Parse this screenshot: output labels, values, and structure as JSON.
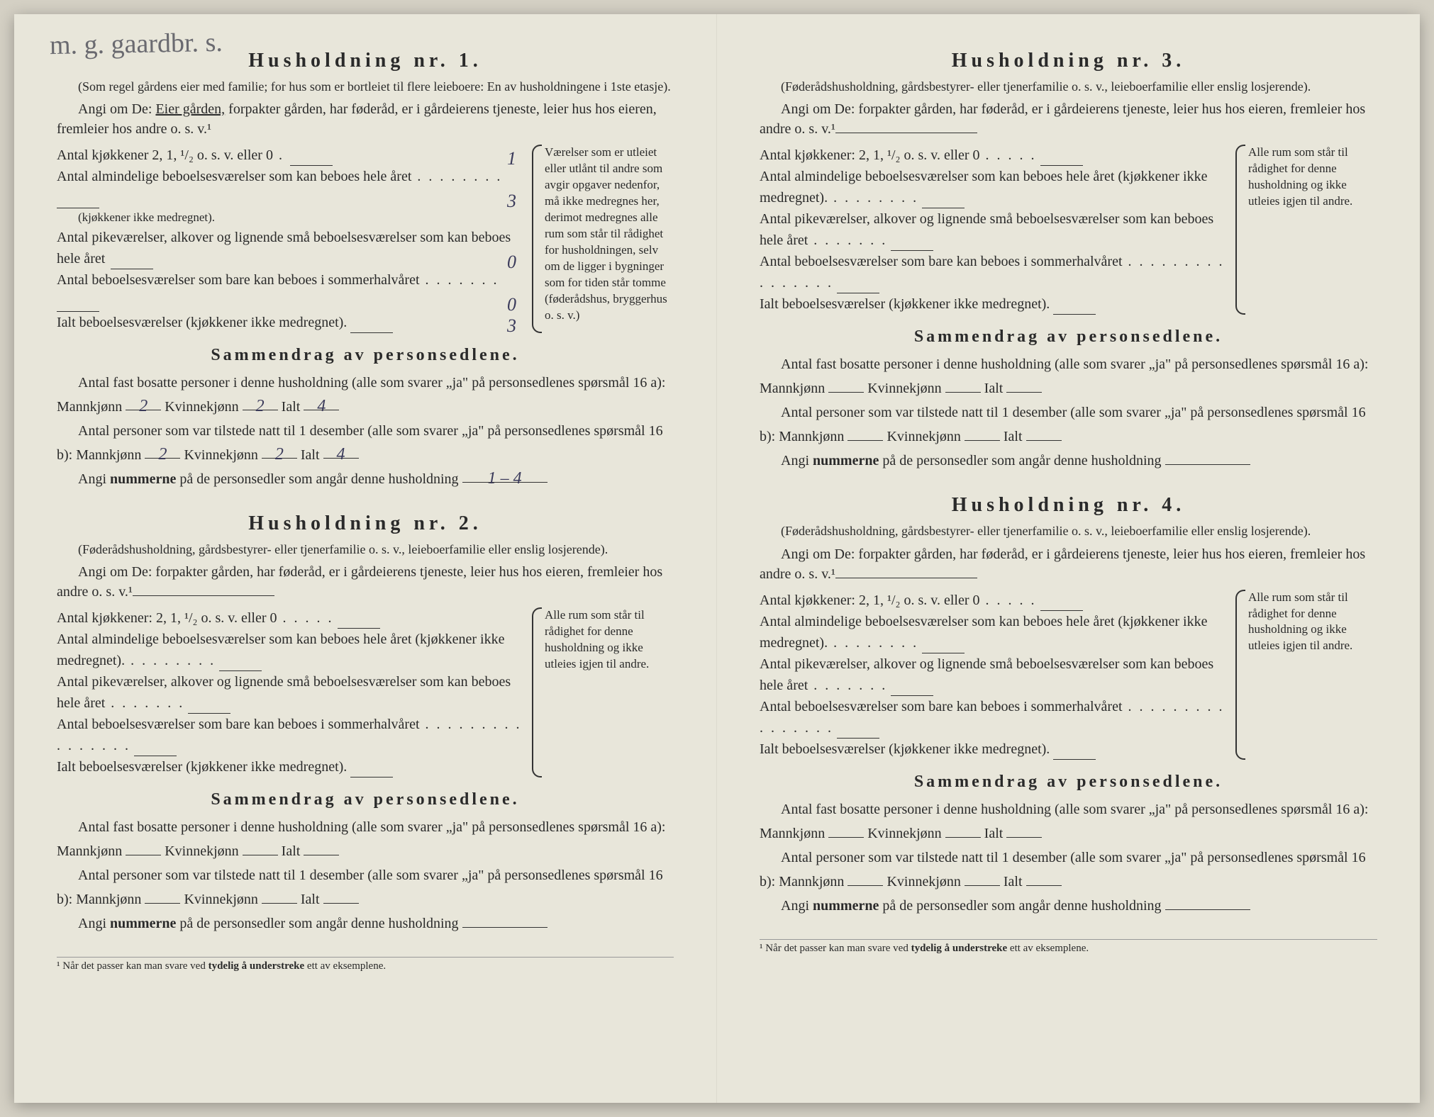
{
  "handwriting_top": "m. g. gaardbr. s.",
  "households": [
    {
      "title": "Husholdning nr. 1.",
      "note": "(Som regel gårdens eier med familie; for hus som er bortleiet til flere leieboere: En av husholdningene i 1ste etasje).",
      "angi_prefix": "Angi om De: ",
      "angi_underlined": "Eier gården,",
      "angi_rest": " forpakter gården, har føderåd, er i gårdeierens tjeneste, leier hus hos eieren, fremleier hos andre o. s. v.¹",
      "rooms": [
        {
          "label": "Antal kjøkkener 2, 1, ¹/₂ o. s. v. eller 0",
          "dots": " . ",
          "value": "1"
        },
        {
          "label": "Antal almindelige beboelsesværelser som kan beboes hele året",
          "dots": " . . . . . . . . ",
          "sub": "(kjøkkener ikke medregnet).",
          "value": "3"
        },
        {
          "label": "Antal pikeværelser, alkover og lignende små beboelsesværelser som kan beboes hele året",
          "dots": "  ",
          "value": "0"
        },
        {
          "label": "Antal beboelsesværelser som bare kan beboes i sommerhalvåret",
          "dots": " . . . . . . . ",
          "value": "0"
        },
        {
          "label": "Ialt beboelsesværelser (kjøkkener ikke medregnet).",
          "dots": "",
          "value": "3"
        }
      ],
      "bracket": "Værelser som er utleiet eller utlånt til andre som avgir opgaver nedenfor, må ikke medregnes her, derimot medregnes alle rum som står til rådighet for husholdningen, selv om de ligger i bygninger som for tiden står tomme (føderådshus, bryggerhus o. s. v.)",
      "summary_title": "Sammendrag av personsedlene.",
      "s16a_text": "Antal fast bosatte personer i denne husholdning (alle som svarer „ja\" på personsedlenes spørsmål 16 a): Mannkjønn",
      "s16a_m": "2",
      "s16a_k_label": "Kvinnekjønn",
      "s16a_k": "2",
      "s16a_i_label": "Ialt",
      "s16a_i": "4",
      "s16b_text": "Antal personer som var tilstede natt til 1 desember (alle som svarer „ja\" på personsedlenes spørsmål 16 b): Mannkjønn",
      "s16b_m": "2",
      "s16b_k": "2",
      "s16b_i": "4",
      "angi_num": "Angi ",
      "angi_num_bold": "nummerne",
      "angi_num_rest": " på de personsedler som angår denne husholdning",
      "angi_num_val": "1 – 4"
    },
    {
      "title": "Husholdning nr. 2.",
      "note": "(Føderådshusholdning, gårdsbestyrer- eller tjenerfamilie o. s. v., leieboerfamilie eller enslig losjerende).",
      "angi_prefix": "Angi om De: forpakter gården, har føderåd, er i gårdeierens tjeneste, leier hus hos eieren, fremleier hos andre o. s. v.¹",
      "rooms": [
        {
          "label": "Antal kjøkkener: 2, 1, ¹/₂ o. s. v. eller 0",
          "dots": " . . . . .",
          "value": ""
        },
        {
          "label": "Antal almindelige beboelsesværelser som kan beboes hele året (kjøkkener ikke medregnet).",
          "dots": " . . . . . . . .",
          "value": ""
        },
        {
          "label": "Antal pikeværelser, alkover og lignende små beboelsesværelser som kan beboes hele året",
          "dots": " . . . . . . .",
          "value": ""
        },
        {
          "label": "Antal beboelsesværelser som bare kan beboes i sommerhalvåret",
          "dots": " . . . . . . . . . . . . . . . .",
          "value": ""
        },
        {
          "label": "Ialt beboelsesværelser (kjøkkener ikke medregnet).",
          "dots": "",
          "value": ""
        }
      ],
      "bracket": "Alle rum som står til rådighet for denne husholdning og ikke utleies igjen til andre.",
      "summary_title": "Sammendrag av personsedlene.",
      "s16a_text": "Antal fast bosatte personer i denne husholdning (alle som svarer „ja\" på personsedlenes spørsmål 16 a): Mannkjønn",
      "s16a_m": "",
      "s16a_k": "",
      "s16a_i": "",
      "s16b_text": "Antal personer som var tilstede natt til 1 desember (alle som svarer „ja\" på personsedlenes spørsmål 16 b): Mannkjønn",
      "s16b_m": "",
      "s16b_k": "",
      "s16b_i": "",
      "angi_num_val": ""
    },
    {
      "title": "Husholdning nr. 3.",
      "note": "(Føderådshusholdning, gårdsbestyrer- eller tjenerfamilie o. s. v., leieboerfamilie eller enslig losjerende).",
      "angi_prefix": "Angi om De: forpakter gården, har føderåd, er i gårdeierens tjeneste, leier hus hos eieren, fremleier hos andre o. s. v.¹",
      "rooms": [
        {
          "label": "Antal kjøkkener: 2, 1, ¹/₂ o. s. v. eller 0",
          "dots": " . . . . .",
          "value": ""
        },
        {
          "label": "Antal almindelige beboelsesværelser som kan beboes hele året (kjøkkener ikke medregnet).",
          "dots": " . . . . . . . .",
          "value": ""
        },
        {
          "label": "Antal pikeværelser, alkover og lignende små beboelsesværelser som kan beboes hele året",
          "dots": " . . . . . . .",
          "value": ""
        },
        {
          "label": "Antal beboelsesværelser som bare kan beboes i sommerhalvåret",
          "dots": " . . . . . . . . . . . . . . . .",
          "value": ""
        },
        {
          "label": "Ialt beboelsesværelser (kjøkkener ikke medregnet).",
          "dots": "",
          "value": ""
        }
      ],
      "bracket": "Alle rum som står til rådighet for denne husholdning og ikke utleies igjen til andre.",
      "summary_title": "Sammendrag av personsedlene.",
      "s16a_text": "Antal fast bosatte personer i denne husholdning (alle som svarer „ja\" på personsedlenes spørsmål 16 a): Mannkjønn",
      "s16a_m": "",
      "s16a_k": "",
      "s16a_i": "",
      "s16b_text": "Antal personer som var tilstede natt til 1 desember (alle som svarer „ja\" på personsedlenes spørsmål 16 b): Mannkjønn",
      "s16b_m": "",
      "s16b_k": "",
      "s16b_i": "",
      "angi_num_val": ""
    },
    {
      "title": "Husholdning nr. 4.",
      "note": "(Føderådshusholdning, gårdsbestyrer- eller tjenerfamilie o. s. v., leieboerfamilie eller enslig losjerende).",
      "angi_prefix": "Angi om De: forpakter gården, har føderåd, er i gårdeierens tjeneste, leier hus hos eieren, fremleier hos andre o. s. v.¹",
      "rooms": [
        {
          "label": "Antal kjøkkener: 2, 1, ¹/₂ o. s. v. eller 0",
          "dots": " . . . . .",
          "value": ""
        },
        {
          "label": "Antal almindelige beboelsesværelser som kan beboes hele året (kjøkkener ikke medregnet).",
          "dots": " . . . . . . . .",
          "value": ""
        },
        {
          "label": "Antal pikeværelser, alkover og lignende små beboelsesværelser som kan beboes hele året",
          "dots": " . . . . . . .",
          "value": ""
        },
        {
          "label": "Antal beboelsesværelser som bare kan beboes i sommerhalvåret",
          "dots": " . . . . . . . . . . . . . . . .",
          "value": ""
        },
        {
          "label": "Ialt beboelsesværelser (kjøkkener ikke medregnet).",
          "dots": "",
          "value": ""
        }
      ],
      "bracket": "Alle rum som står til rådighet for denne husholdning og ikke utleies igjen til andre.",
      "summary_title": "Sammendrag av personsedlene.",
      "s16a_text": "Antal fast bosatte personer i denne husholdning (alle som svarer „ja\" på personsedlenes spørsmål 16 a): Mannkjønn",
      "s16a_m": "",
      "s16a_k": "",
      "s16a_i": "",
      "s16b_text": "Antal personer som var tilstede natt til 1 desember (alle som svarer „ja\" på personsedlenes spørsmål 16 b): Mannkjønn",
      "s16b_m": "",
      "s16b_k": "",
      "s16b_i": "",
      "angi_num_val": ""
    }
  ],
  "labels": {
    "kvinnekjonn": "Kvinnekjønn",
    "ialt": "Ialt",
    "angi_num": "Angi ",
    "angi_num_bold": "nummerne",
    "angi_num_rest": " på de personsedler som angår denne husholdning"
  },
  "footnote": "¹ Når det passer kan man svare ved ",
  "footnote_bold": "tydelig å understreke",
  "footnote_rest": " ett av eksemplene.",
  "colors": {
    "paper": "#e8e6da",
    "ink": "#2a2a2a",
    "handwriting": "#3a3a5a",
    "pencil": "#6a6a70"
  }
}
